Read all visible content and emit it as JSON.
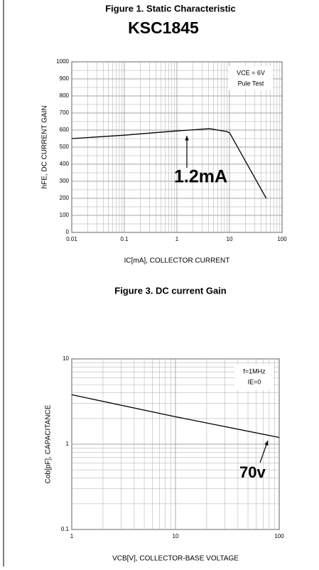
{
  "header": {
    "figure_title": "Figure 1. Static Characteristic",
    "part_number": "KSC1845"
  },
  "chart_data": [
    {
      "type": "line",
      "xscale": "log",
      "yscale": "linear",
      "xlabel": "IC[mA], COLLECTOR CURRENT",
      "ylabel": "hFE, DC CURRENT GAIN",
      "caption": "Figure 3. DC current Gain",
      "x": [
        0.01,
        0.1,
        1,
        4.2,
        8.5,
        10,
        50
      ],
      "values": [
        550,
        570,
        595,
        608,
        592,
        585,
        200
      ],
      "color": "#000000",
      "xlim": [
        0.01,
        100
      ],
      "xticks": [
        0.01,
        0.1,
        1,
        10,
        100
      ],
      "ylim": [
        0,
        1000
      ],
      "yticks": [
        0,
        100,
        200,
        300,
        400,
        500,
        600,
        700,
        800,
        900,
        1000
      ],
      "grid": true,
      "minor_grid": true,
      "notes": [
        "VCE = 6V",
        "Pule Test"
      ],
      "annotations": [
        "1.2mA"
      ]
    },
    {
      "type": "line",
      "xscale": "log",
      "yscale": "log",
      "xlabel": "VCB[V], COLLECTOR-BASE VOLTAGE",
      "ylabel": "Cob[pF], CAPACITANCE",
      "x": [
        1,
        10,
        100
      ],
      "values": [
        3.8,
        2.1,
        1.2
      ],
      "color": "#000000",
      "xlim": [
        1,
        100
      ],
      "xticks": [
        1,
        10,
        100
      ],
      "ylim": [
        0.1,
        10
      ],
      "yticks": [
        0.1,
        1,
        10
      ],
      "grid": true,
      "minor_grid": true,
      "notes": [
        "f=1MHz",
        "IE=0"
      ],
      "annotations": [
        "70v"
      ]
    }
  ]
}
